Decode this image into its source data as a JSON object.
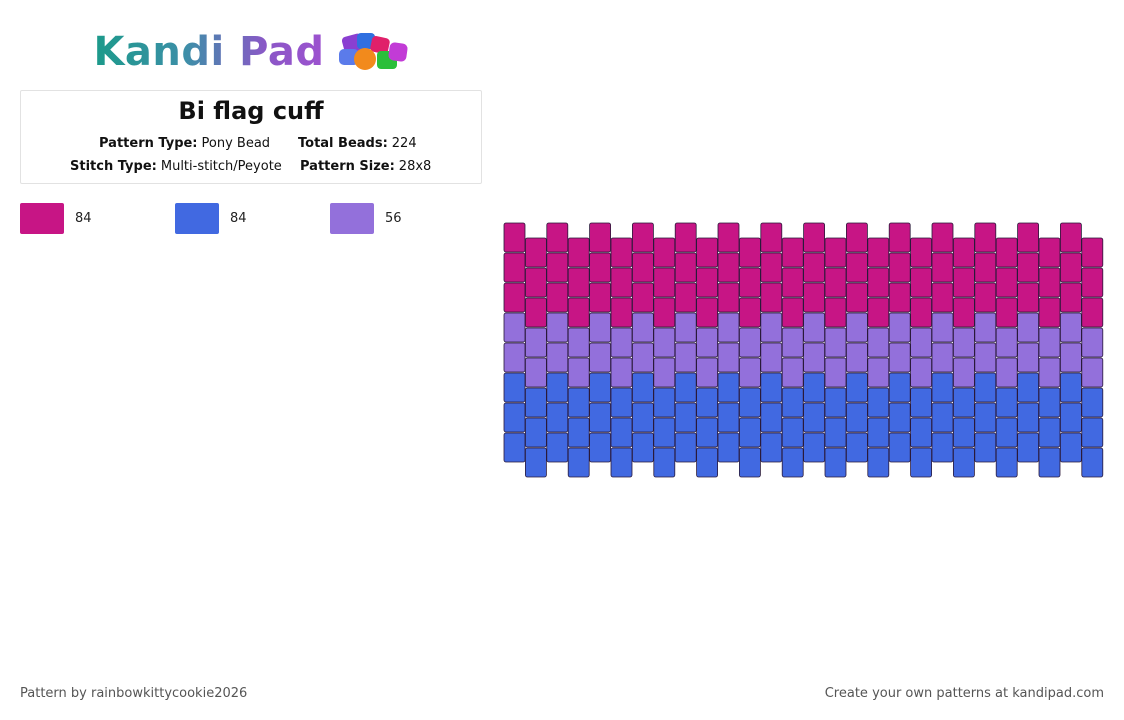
{
  "logo": {
    "text": "Kandi Pad",
    "icon": "bead-cluster-icon"
  },
  "pattern": {
    "title": "Bi flag cuff",
    "type_label": "Pattern Type:",
    "type_value": "Pony Bead",
    "beads_label": "Total Beads:",
    "beads_value": "224",
    "stitch_label": "Stitch Type:",
    "stitch_value": "Multi-stitch/Peyote",
    "size_label": "Pattern Size:",
    "size_value": "28x8"
  },
  "legend": [
    {
      "color": "#c71585",
      "count": "84"
    },
    {
      "color": "#4169e1",
      "count": "84"
    },
    {
      "color": "#9370db",
      "count": "56"
    }
  ],
  "grid": {
    "columns": 28,
    "rows": 8,
    "colors": {
      "pink": "#c71585",
      "purple": "#9370db",
      "blue": "#4169e1"
    },
    "row_colors": [
      "pink",
      "pink",
      "pink",
      "purple",
      "purple",
      "blue",
      "blue",
      "blue"
    ]
  },
  "footer": {
    "left": "Pattern by rainbowkittycookie2026",
    "right": "Create your own patterns at kandipad.com"
  }
}
